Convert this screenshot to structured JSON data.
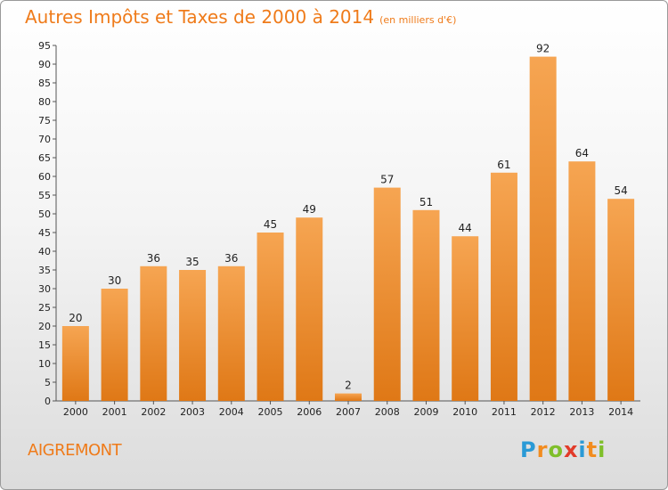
{
  "title": "Autres Impôts et Taxes de 2000 à 2014",
  "title_unit": "(en milliers d'€)",
  "town": "AIGREMONT",
  "logo": {
    "text": "Proxiti",
    "letters": [
      "P",
      "r",
      "o",
      "x",
      "i",
      "t",
      "i"
    ],
    "colors": [
      "#2a9ad6",
      "#f28c1f",
      "#7fbf2a",
      "#e23b2a",
      "#2a9ad6",
      "#f28c1f",
      "#7fbf2a"
    ]
  },
  "colors": {
    "bar_top": "#f6a552",
    "bar_bottom": "#df7816",
    "accent": "#ef7b1a"
  },
  "chart_data": {
    "type": "bar",
    "title": "Autres Impôts et Taxes de 2000 à 2014",
    "subtitle": "(en milliers d'€)",
    "xlabel": "",
    "ylabel": "",
    "ylim": [
      0,
      95
    ],
    "ytick_step": 5,
    "grid": false,
    "legend": "none",
    "categories": [
      "2000",
      "2001",
      "2002",
      "2003",
      "2004",
      "2005",
      "2006",
      "2007",
      "2008",
      "2009",
      "2010",
      "2011",
      "2012",
      "2013",
      "2014"
    ],
    "values": [
      20,
      30,
      36,
      35,
      36,
      45,
      49,
      2,
      57,
      51,
      44,
      61,
      92,
      64,
      54
    ]
  }
}
